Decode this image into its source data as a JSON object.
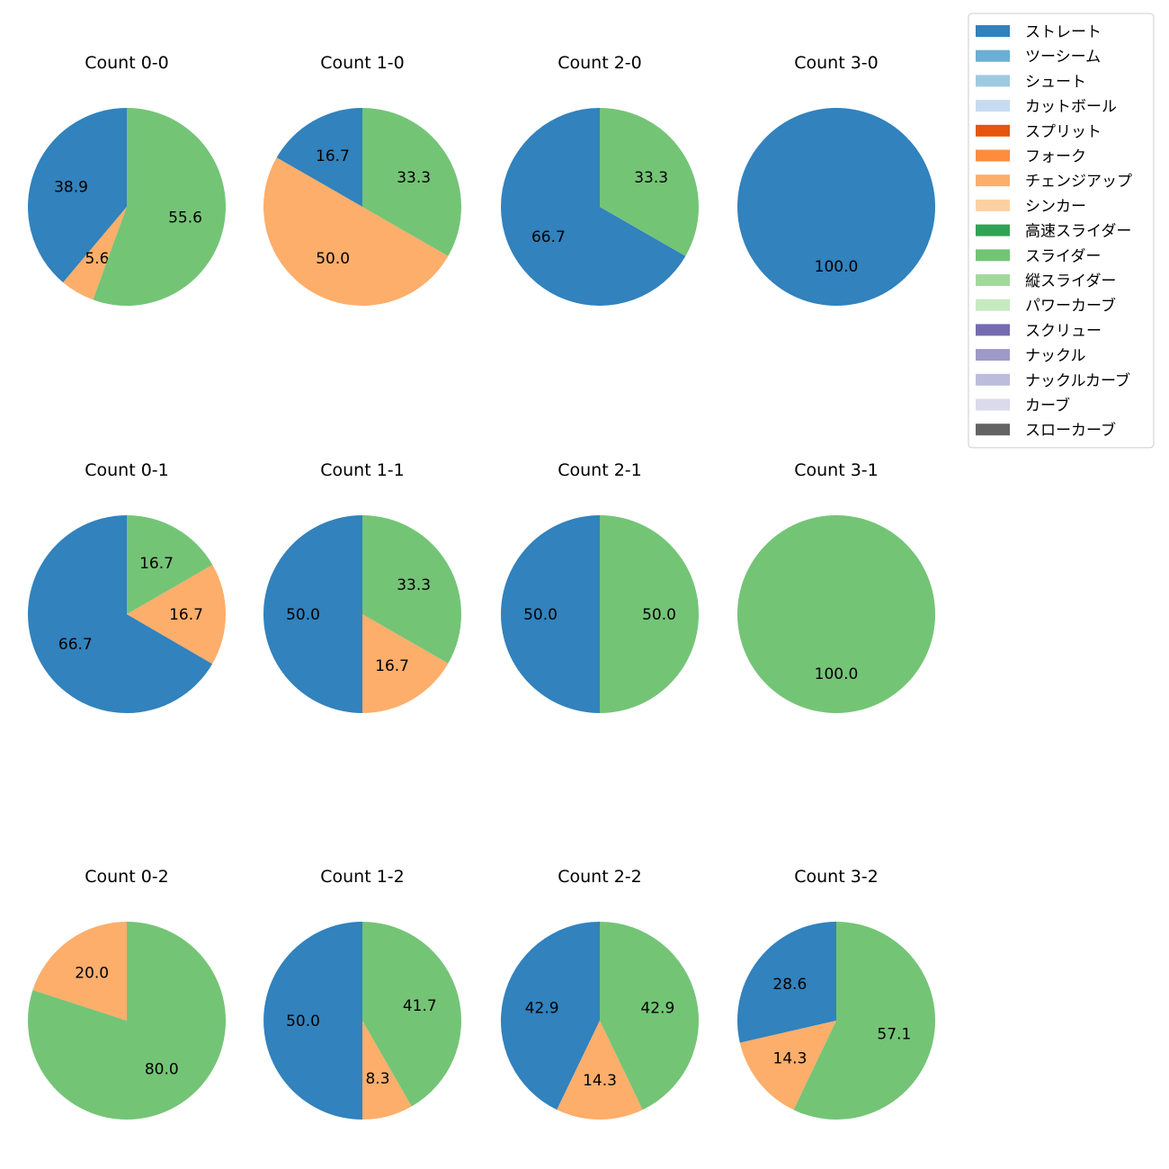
{
  "chart_data": {
    "type": "pie",
    "series_colors": {
      "ストレート": "#3182bd",
      "ツーシーム": "#6baed6",
      "シュート": "#9ecae1",
      "カットボール": "#c6dbef",
      "スプリット": "#e6550d",
      "フォーク": "#fd8d3c",
      "チェンジアップ": "#fdae6b",
      "シンカー": "#fdd0a2",
      "高速スライダー": "#31a354",
      "スライダー": "#74c476",
      "縦スライダー": "#a1d99b",
      "パワーカーブ": "#c7e9c0",
      "スクリュー": "#756bb1",
      "ナックル": "#9e9ac8",
      "ナックルカーブ": "#bcbddc",
      "カーブ": "#dadaeb",
      "スローカーブ": "#636363"
    },
    "legend": {
      "placement": "top-right",
      "entries": [
        "ストレート",
        "ツーシーム",
        "シュート",
        "カットボール",
        "スプリット",
        "フォーク",
        "チェンジアップ",
        "シンカー",
        "高速スライダー",
        "スライダー",
        "縦スライダー",
        "パワーカーブ",
        "スクリュー",
        "ナックル",
        "ナックルカーブ",
        "カーブ",
        "スローカーブ"
      ]
    },
    "pies": [
      {
        "title": "Count 0-0",
        "slices": [
          {
            "name": "ストレート",
            "value": 38.9
          },
          {
            "name": "チェンジアップ",
            "value": 5.6
          },
          {
            "name": "スライダー",
            "value": 55.6
          }
        ]
      },
      {
        "title": "Count 1-0",
        "slices": [
          {
            "name": "ストレート",
            "value": 16.7
          },
          {
            "name": "チェンジアップ",
            "value": 50.0
          },
          {
            "name": "スライダー",
            "value": 33.3
          }
        ]
      },
      {
        "title": "Count 2-0",
        "slices": [
          {
            "name": "ストレート",
            "value": 66.7
          },
          {
            "name": "スライダー",
            "value": 33.3
          }
        ]
      },
      {
        "title": "Count 3-0",
        "slices": [
          {
            "name": "ストレート",
            "value": 100.0
          }
        ]
      },
      {
        "title": "Count 0-1",
        "slices": [
          {
            "name": "ストレート",
            "value": 66.7
          },
          {
            "name": "チェンジアップ",
            "value": 16.7
          },
          {
            "name": "スライダー",
            "value": 16.7
          }
        ]
      },
      {
        "title": "Count 1-1",
        "slices": [
          {
            "name": "ストレート",
            "value": 50.0
          },
          {
            "name": "チェンジアップ",
            "value": 16.7
          },
          {
            "name": "スライダー",
            "value": 33.3
          }
        ]
      },
      {
        "title": "Count 2-1",
        "slices": [
          {
            "name": "ストレート",
            "value": 50.0
          },
          {
            "name": "スライダー",
            "value": 50.0
          }
        ]
      },
      {
        "title": "Count 3-1",
        "slices": [
          {
            "name": "スライダー",
            "value": 100.0
          }
        ]
      },
      {
        "title": "Count 0-2",
        "slices": [
          {
            "name": "チェンジアップ",
            "value": 20.0
          },
          {
            "name": "スライダー",
            "value": 80.0
          }
        ]
      },
      {
        "title": "Count 1-2",
        "slices": [
          {
            "name": "ストレート",
            "value": 50.0
          },
          {
            "name": "チェンジアップ",
            "value": 8.3
          },
          {
            "name": "スライダー",
            "value": 41.7
          }
        ]
      },
      {
        "title": "Count 2-2",
        "slices": [
          {
            "name": "ストレート",
            "value": 42.9
          },
          {
            "name": "チェンジアップ",
            "value": 14.3
          },
          {
            "name": "スライダー",
            "value": 42.9
          }
        ]
      },
      {
        "title": "Count 3-2",
        "slices": [
          {
            "name": "ストレート",
            "value": 28.6
          },
          {
            "name": "チェンジアップ",
            "value": 14.3
          },
          {
            "name": "スライダー",
            "value": 57.1
          }
        ]
      }
    ]
  }
}
